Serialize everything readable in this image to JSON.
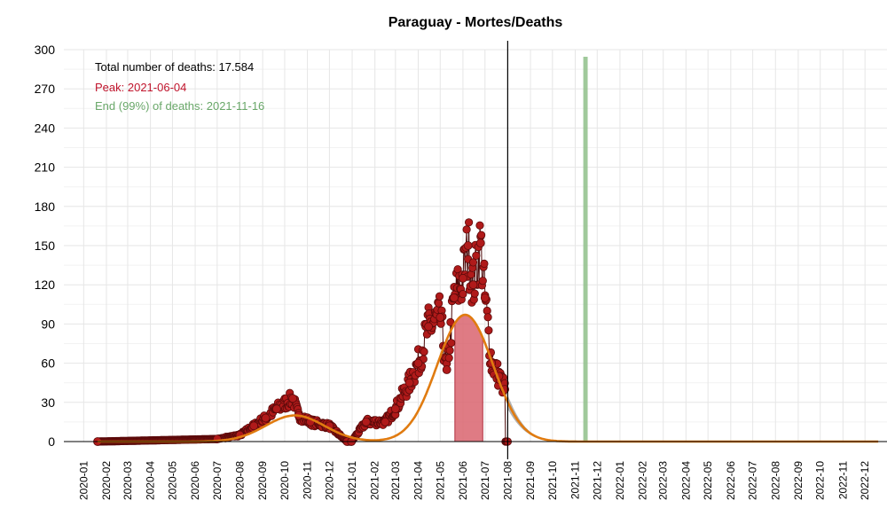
{
  "chart_data": {
    "type": "scatter",
    "title": "Paraguay - Mortes/Deaths",
    "xlabel": "",
    "ylabel": "",
    "ylim": [
      0,
      300
    ],
    "xlim": [
      "2019-12-05",
      "2022-12-31"
    ],
    "yticks": [
      0,
      30,
      60,
      90,
      120,
      150,
      180,
      210,
      240,
      270,
      300
    ],
    "xticks": [
      "2020-01",
      "2020-02",
      "2020-03",
      "2020-04",
      "2020-05",
      "2020-06",
      "2020-07",
      "2020-08",
      "2020-09",
      "2020-10",
      "2020-11",
      "2020-12",
      "2021-01",
      "2021-02",
      "2021-03",
      "2021-04",
      "2021-05",
      "2021-06",
      "2021-07",
      "2021-08",
      "2021-09",
      "2021-10",
      "2021-11",
      "2021-12",
      "2022-01",
      "2022-02",
      "2022-03",
      "2022-04",
      "2022-05",
      "2022-06",
      "2022-07",
      "2022-08",
      "2022-09",
      "2022-10",
      "2022-11",
      "2022-12"
    ],
    "grid": true,
    "annotations": {
      "total": "Total number of deaths: 17.584",
      "peak": "Peak: 2021-06-04",
      "end": "End (99%) of deaths: 2021-11-16"
    },
    "colors": {
      "points": "#b01a1a",
      "points_stroke": "#5a0a0a",
      "fit": "#e07b10",
      "peak_band": "#d9646e",
      "end_band": "#8fbf8a",
      "forecast_band": "#aaaaaa",
      "peak_text": "#c0142c",
      "end_text": "#6aa86a"
    },
    "today": "2021-08-01",
    "peak_band": [
      "2021-05-21",
      "2021-06-28"
    ],
    "end_band": [
      "2021-11-12",
      "2021-11-18"
    ],
    "fit_components": [
      {
        "amplitude": 20,
        "center": "2020-10-15",
        "width_days": 40
      },
      {
        "amplitude": 97,
        "center": "2021-06-04",
        "width_days": 38
      }
    ],
    "forecast_band_amplitude": 1.18,
    "points_daily": {
      "start": "2020-01-20",
      "end": "2021-08-01",
      "description": "daily reported deaths"
    },
    "points_keyed": [
      {
        "date": "2020-01-20",
        "value": 0
      },
      {
        "date": "2020-07-01",
        "value": 2
      },
      {
        "date": "2020-08-01",
        "value": 5
      },
      {
        "date": "2020-08-20",
        "value": 12
      },
      {
        "date": "2020-09-05",
        "value": 18
      },
      {
        "date": "2020-09-20",
        "value": 25
      },
      {
        "date": "2020-10-12",
        "value": 33
      },
      {
        "date": "2020-10-20",
        "value": 20
      },
      {
        "date": "2020-11-05",
        "value": 15
      },
      {
        "date": "2020-12-01",
        "value": 12
      },
      {
        "date": "2020-12-25",
        "value": 0
      },
      {
        "date": "2020-12-31",
        "value": 0
      },
      {
        "date": "2021-01-20",
        "value": 15
      },
      {
        "date": "2021-02-15",
        "value": 15
      },
      {
        "date": "2021-03-01",
        "value": 25
      },
      {
        "date": "2021-03-20",
        "value": 45
      },
      {
        "date": "2021-04-01",
        "value": 60
      },
      {
        "date": "2021-04-15",
        "value": 88
      },
      {
        "date": "2021-05-01",
        "value": 95
      },
      {
        "date": "2021-05-10",
        "value": 55
      },
      {
        "date": "2021-05-20",
        "value": 110
      },
      {
        "date": "2021-06-01",
        "value": 125
      },
      {
        "date": "2021-06-08",
        "value": 150
      },
      {
        "date": "2021-06-15",
        "value": 120
      },
      {
        "date": "2021-06-25",
        "value": 152
      },
      {
        "date": "2021-07-01",
        "value": 110
      },
      {
        "date": "2021-07-10",
        "value": 60
      },
      {
        "date": "2021-07-20",
        "value": 50
      },
      {
        "date": "2021-07-28",
        "value": 40
      }
    ]
  }
}
